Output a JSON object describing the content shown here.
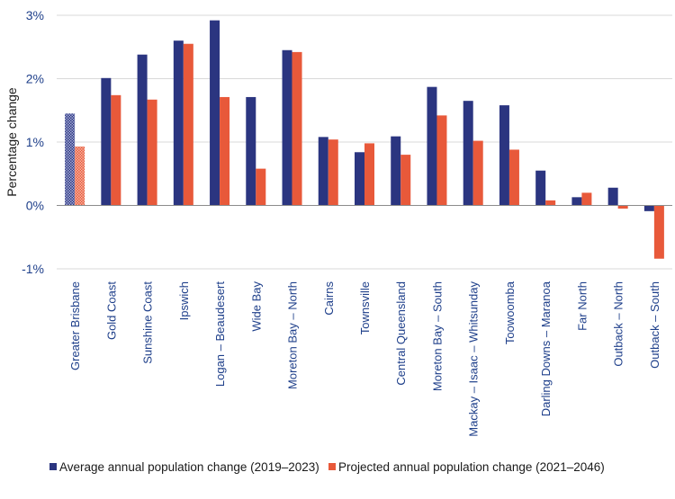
{
  "chart_data": {
    "type": "bar",
    "title": "",
    "xlabel": "",
    "ylabel": "Percentage change",
    "ylim": [
      -1,
      3
    ],
    "yticks": [
      -1,
      0,
      1,
      2,
      3
    ],
    "ytick_labels": [
      "-1%",
      "0%",
      "1%",
      "2%",
      "3%"
    ],
    "grid": true,
    "legend_position": "bottom",
    "categories": [
      "Greater Brisbane",
      "Gold Coast",
      "Sunshine Coast",
      "Ipswich",
      "Logan – Beaudesert",
      "Wide Bay",
      "Moreton Bay – North",
      "Cairns",
      "Townsville",
      "Central Queensland",
      "Moreton Bay – South",
      "Mackay – Isaac – Whitsunday",
      "Toowoomba",
      "Darling Downs – Maranoa",
      "Far North",
      "Outback – North",
      "Outback – South"
    ],
    "highlighted_category": "Greater Brisbane",
    "series": [
      {
        "name": "Average annual population change (2019–2023)",
        "color": "#2b3580",
        "values": [
          1.45,
          2.01,
          2.38,
          2.6,
          2.92,
          1.71,
          2.45,
          1.08,
          0.84,
          1.09,
          1.87,
          1.65,
          1.58,
          0.55,
          0.13,
          0.28,
          -0.09
        ]
      },
      {
        "name": "Projected annual population change (2021–2046)",
        "color": "#e8593a",
        "values": [
          0.93,
          1.74,
          1.67,
          2.55,
          1.71,
          0.58,
          2.42,
          1.04,
          0.98,
          0.8,
          1.42,
          1.02,
          0.88,
          0.08,
          0.2,
          -0.05,
          -0.84
        ]
      }
    ]
  }
}
